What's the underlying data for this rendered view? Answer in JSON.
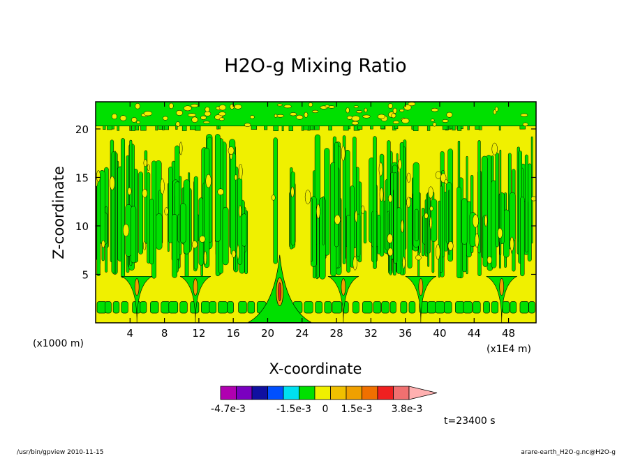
{
  "chart_data": {
    "type": "heatmap",
    "title": "H2O-g Mixing Ratio",
    "xlabel": "X-coordinate",
    "ylabel": "Z-coordinate",
    "x_unit": "(x1E4 m)",
    "y_unit": "(x1000 m)",
    "xlim": [
      0,
      51.2
    ],
    "ylim": [
      0,
      22.8
    ],
    "x_ticks": [
      4,
      8,
      12,
      16,
      20,
      24,
      28,
      32,
      36,
      40,
      44,
      48
    ],
    "y_ticks": [
      5,
      10,
      15,
      20
    ],
    "time_label": "t=23400 s",
    "colorbar": {
      "colors": [
        "#b000b0",
        "#7a00c0",
        "#1010a0",
        "#0050ff",
        "#00e0f0",
        "#00e000",
        "#f0f000",
        "#f0c000",
        "#f0a000",
        "#f07000",
        "#f02020",
        "#f07070",
        "#ffb0b0"
      ],
      "labels": [
        "-4.7e-3",
        "-1.5e-3",
        "0",
        "1.5e-3",
        "3.8e-3"
      ],
      "extend": "max"
    },
    "field_colors": {
      "background": "#f0f000",
      "patches": "#00e000",
      "core": "#f0a000",
      "hot": "#f02020"
    },
    "plumes_x": [
      4.8,
      11.6,
      21.4,
      28.8,
      37.8,
      47.2
    ]
  },
  "footer": {
    "left": "/usr/bin/gpview   2010-11-15",
    "right": "arare-earth_H2O-g.nc@H2O-g"
  }
}
